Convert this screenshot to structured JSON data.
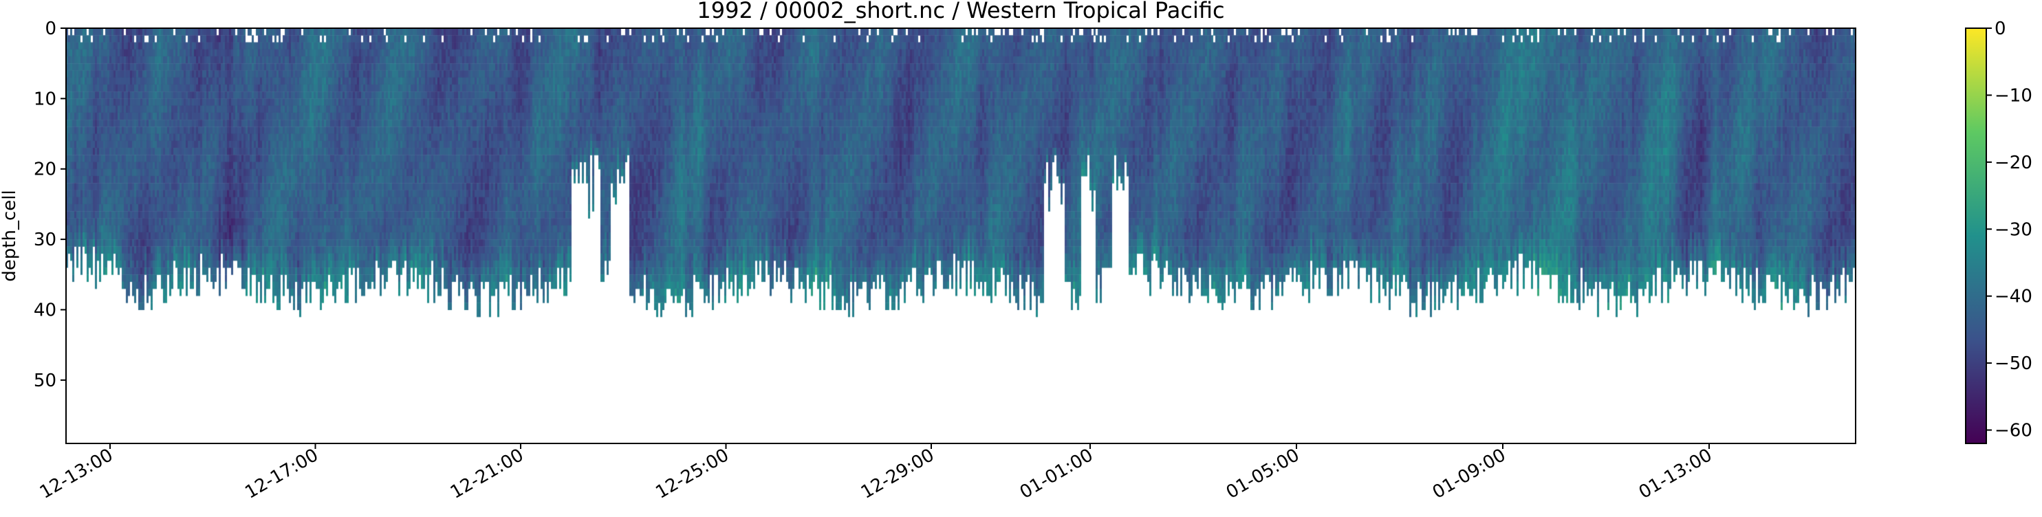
{
  "chart_data": {
    "type": "heatmap",
    "title": "1992 / 00002_short.nc / Western Tropical Pacific",
    "xlabel": "",
    "ylabel": "depth_cell",
    "y_ticks": [
      0,
      10,
      20,
      30,
      40,
      50
    ],
    "ylim": [
      59,
      0
    ],
    "y_inverted": true,
    "x_ticks": [
      "12-13:00",
      "12-17:00",
      "12-21:00",
      "12-25:00",
      "12-29:00",
      "01-01:00",
      "01-05:00",
      "01-09:00",
      "01-13:00"
    ],
    "colorbar": {
      "colormap": "viridis",
      "range": [
        -62,
        0
      ],
      "ticks": [
        0,
        -10,
        -20,
        -30,
        -40,
        -50,
        -60
      ]
    },
    "colormap_colors": [
      "#440154",
      "#3b528b",
      "#21918c",
      "#5ec962",
      "#fde725"
    ],
    "background_color": "#ffffff",
    "data_description_values": {
      "typical_bottom_depth_cell": 35,
      "deep_gap_depth_cell": 17
    }
  }
}
